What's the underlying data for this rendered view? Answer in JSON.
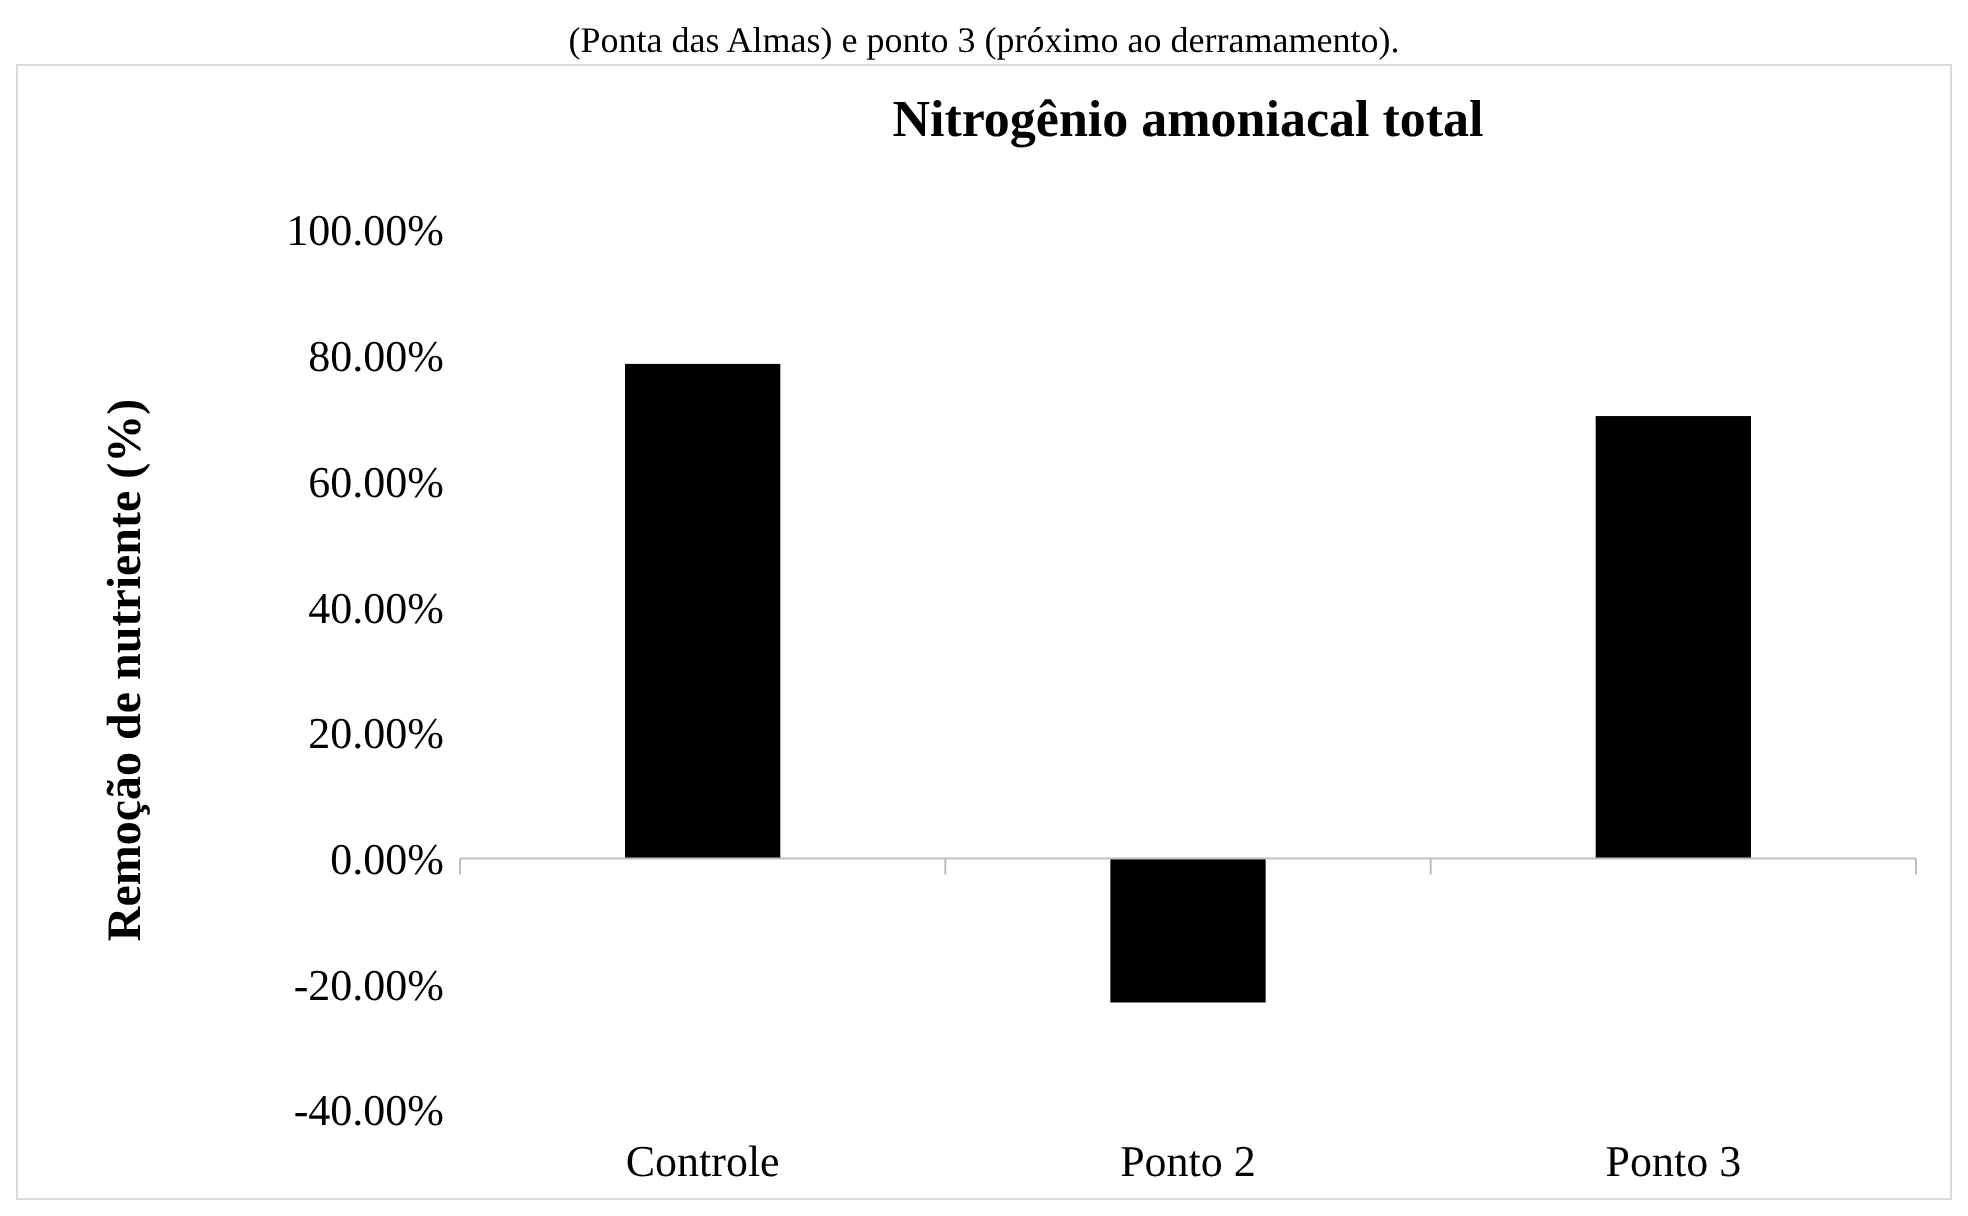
{
  "chart_data": {
    "type": "bar",
    "title": "Nitrogênio amoniacal total",
    "ylabel": "Remoção de nutriente (%)",
    "annotations": [
      "(Ponta das Almas) e ponto 3 (próximo ao derramamento)."
    ],
    "categories": [
      "Controle",
      "Ponto 2",
      "Ponto 3"
    ],
    "series": [
      {
        "color": "#000000",
        "values": [
          78.7,
          -22.9,
          70.4
        ]
      }
    ],
    "ylim": [
      -40,
      100
    ],
    "yticks": [
      {
        "value": -40,
        "label": "-40.00%"
      },
      {
        "value": -20,
        "label": "-20.00%"
      },
      {
        "value": 0,
        "label": "0.00%"
      },
      {
        "value": 20,
        "label": "20.00%"
      },
      {
        "value": 40,
        "label": "40.00%"
      },
      {
        "value": 60,
        "label": "60.00%"
      },
      {
        "value": 80,
        "label": "80.00%"
      },
      {
        "value": 100,
        "label": "100.00%"
      }
    ]
  }
}
